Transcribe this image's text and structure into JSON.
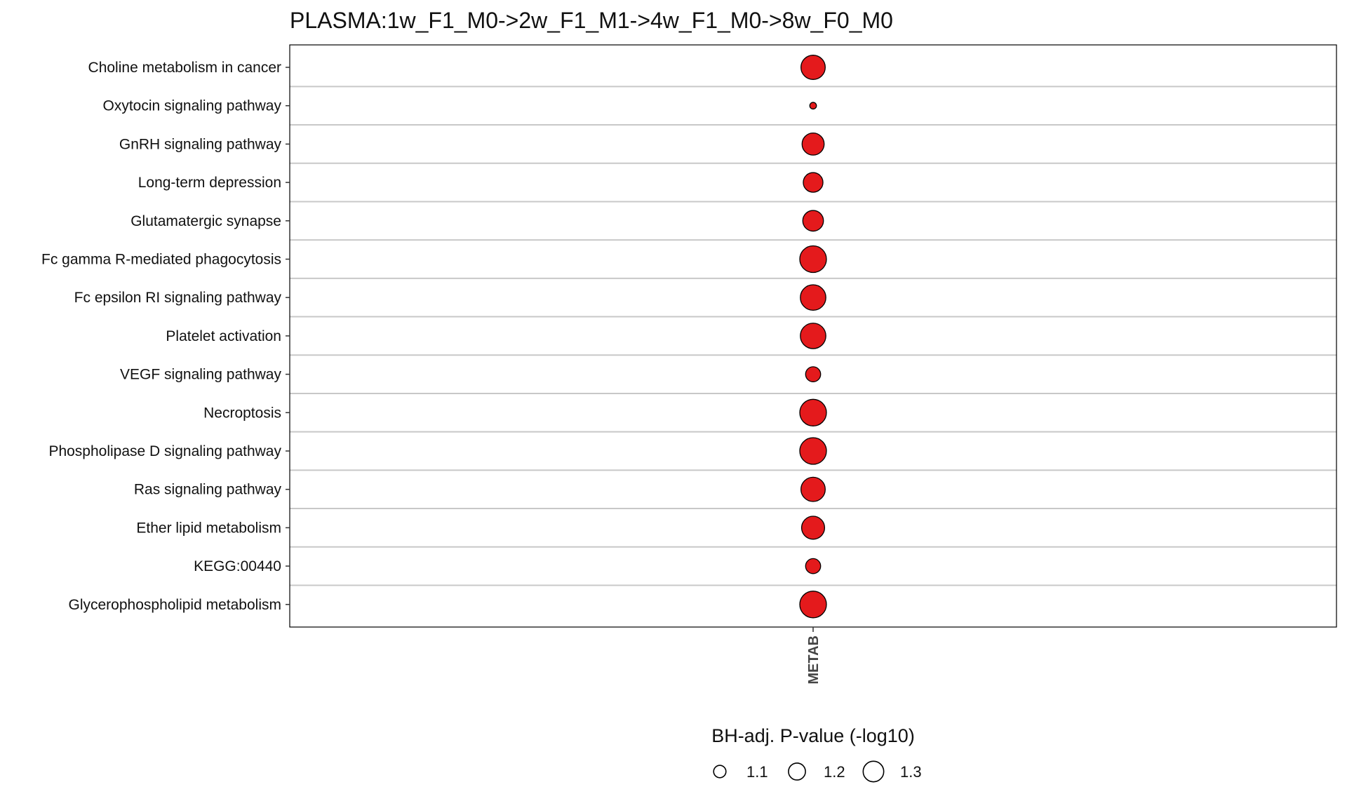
{
  "chart_data": {
    "type": "scatter",
    "title": "PLASMA:1w_F1_M0->2w_F1_M1->4w_F1_M0->8w_F0_M0",
    "x_categories": [
      "METAB"
    ],
    "y_categories": [
      "Choline metabolism in cancer",
      "Oxytocin signaling pathway",
      "GnRH signaling pathway",
      "Long-term depression",
      "Glutamatergic synapse",
      "Fc gamma R-mediated phagocytosis",
      "Fc epsilon RI signaling pathway",
      "Platelet activation",
      "VEGF signaling pathway",
      "Necroptosis",
      "Phospholipase D signaling pathway",
      "Ras signaling pathway",
      "Ether lipid metabolism",
      "KEGG:00440",
      "Glycerophospholipid metabolism"
    ],
    "points": [
      {
        "pathway": "Choline metabolism in cancer",
        "x": "METAB",
        "size_value": 1.28
      },
      {
        "pathway": "Oxytocin signaling pathway",
        "x": "METAB",
        "size_value": 1.01
      },
      {
        "pathway": "GnRH signaling pathway",
        "x": "METAB",
        "size_value": 1.23
      },
      {
        "pathway": "Long-term depression",
        "x": "METAB",
        "size_value": 1.18
      },
      {
        "pathway": "Glutamatergic synapse",
        "x": "METAB",
        "size_value": 1.2
      },
      {
        "pathway": "Fc gamma R-mediated phagocytosis",
        "x": "METAB",
        "size_value": 1.34
      },
      {
        "pathway": "Fc epsilon RI signaling pathway",
        "x": "METAB",
        "size_value": 1.31
      },
      {
        "pathway": "Platelet activation",
        "x": "METAB",
        "size_value": 1.31
      },
      {
        "pathway": "VEGF signaling pathway",
        "x": "METAB",
        "size_value": 1.1
      },
      {
        "pathway": "Necroptosis",
        "x": "METAB",
        "size_value": 1.34
      },
      {
        "pathway": "Phospholipase D signaling pathway",
        "x": "METAB",
        "size_value": 1.34
      },
      {
        "pathway": "Ras signaling pathway",
        "x": "METAB",
        "size_value": 1.28
      },
      {
        "pathway": "Ether lipid metabolism",
        "x": "METAB",
        "size_value": 1.25
      },
      {
        "pathway": "KEGG:00440",
        "x": "METAB",
        "size_value": 1.1
      },
      {
        "pathway": "Glycerophospholipid metabolism",
        "x": "METAB",
        "size_value": 1.34
      }
    ],
    "size_legend": {
      "title": "BH-adj. P-value (-log10)",
      "values": [
        1.1,
        1.2,
        1.3
      ],
      "labels": [
        "1.1",
        "1.2",
        "1.3"
      ],
      "placement": "bottom"
    },
    "colors": {
      "point_fill": "#e41a1c",
      "point_stroke": "#000000",
      "grid": "#c8c8c8"
    },
    "grid": true
  }
}
